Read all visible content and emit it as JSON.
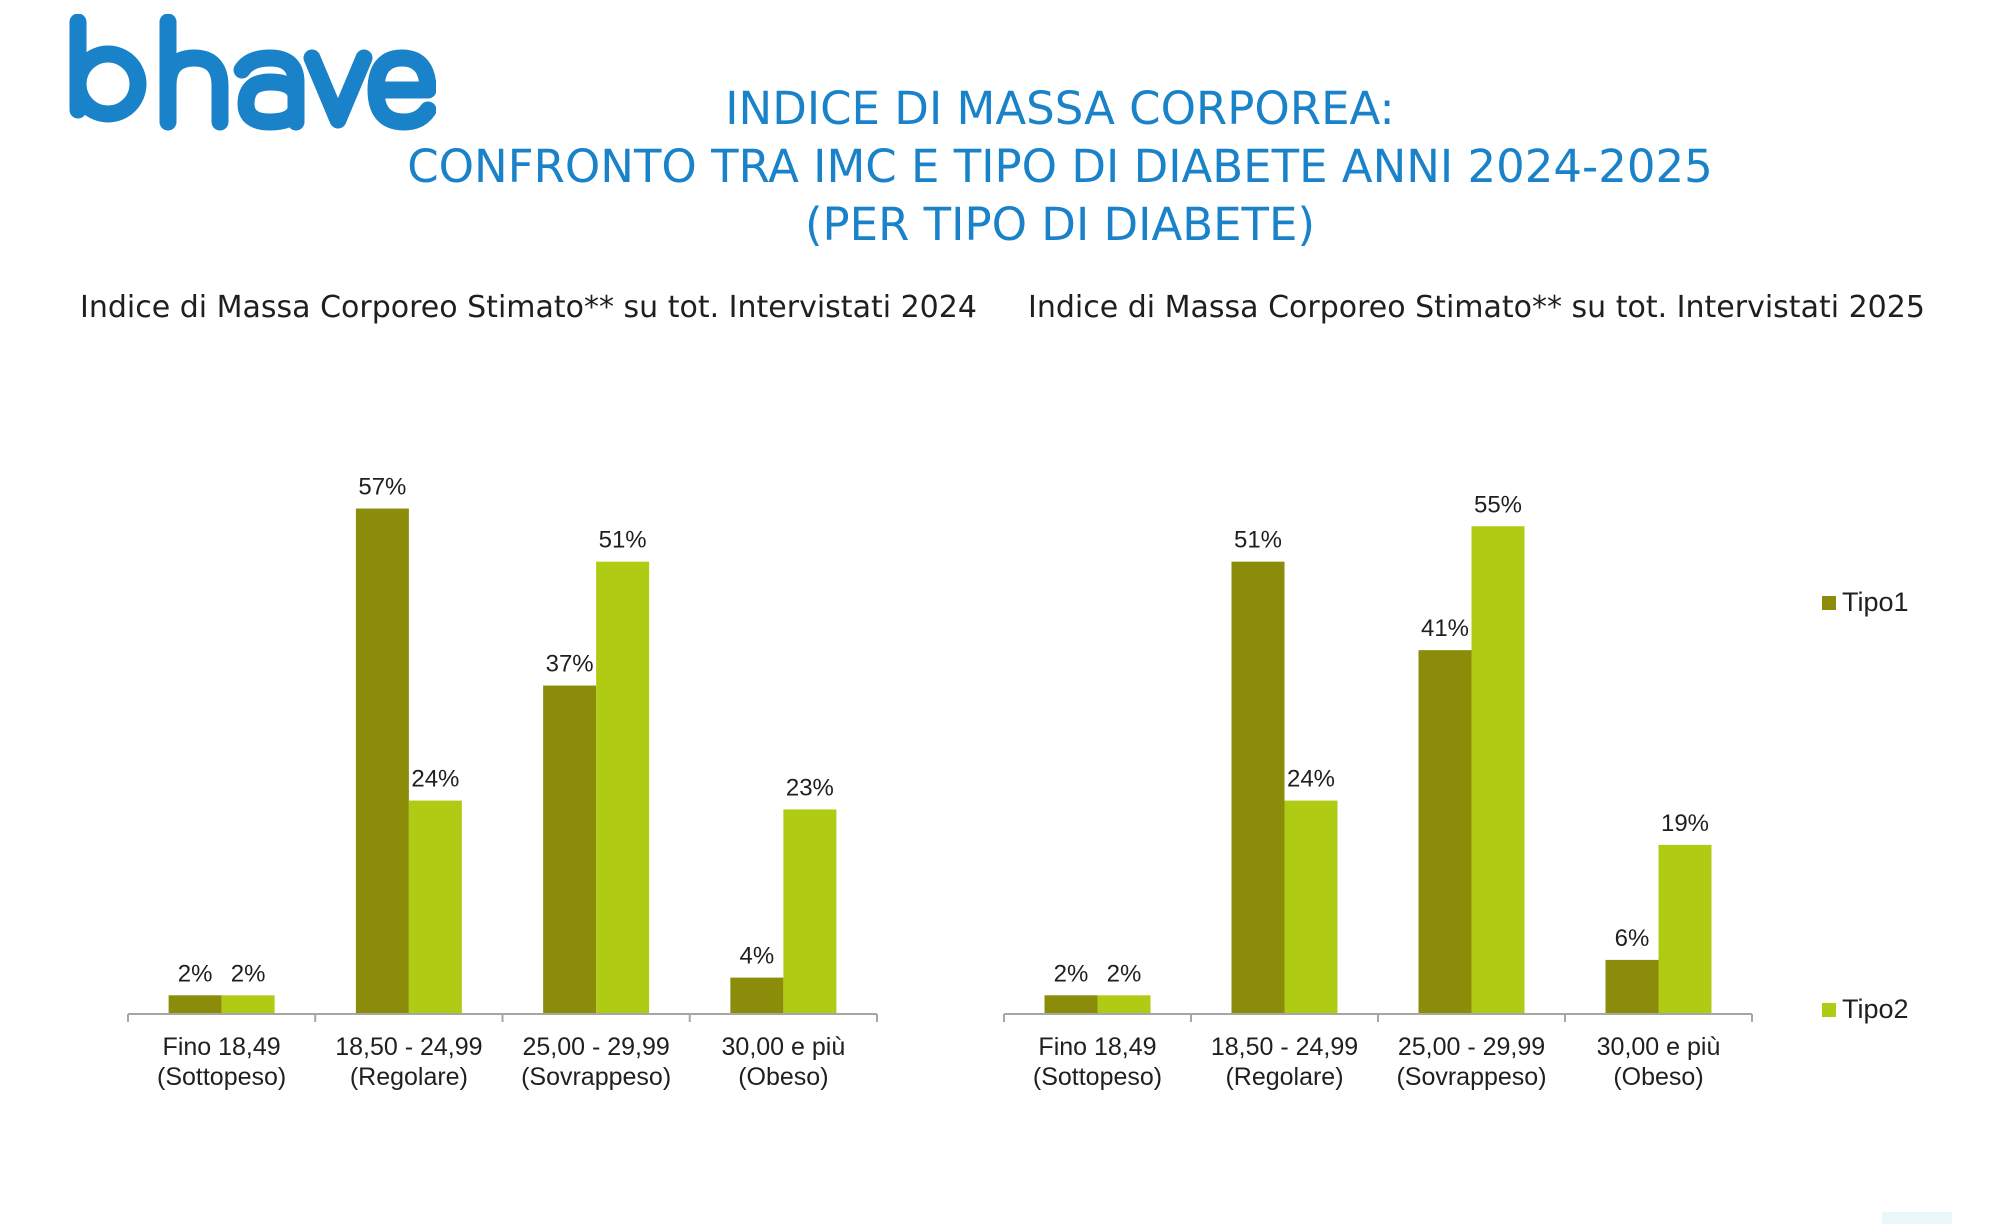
{
  "logo": {
    "text": "bhave",
    "color": "#1a82c8"
  },
  "title": {
    "line1": "INDICE DI MASSA CORPOREA:",
    "line2": "CONFRONTO TRA IMC E TIPO DI DIABETE ANNI 2024-2025",
    "line3": "(PER TIPO DI DIABETE)"
  },
  "legend": {
    "tipo1": {
      "label": "Tipo1",
      "color": "#8a8c0a"
    },
    "tipo2": {
      "label": "Tipo2",
      "color": "#b0cb13"
    }
  },
  "chart_data": [
    {
      "type": "bar",
      "title": "Indice di Massa Corporeo Stimato** su tot. Intervistati 2024",
      "categories": [
        [
          "Fino 18,49",
          "(Sottopeso)"
        ],
        [
          "18,50 - 24,99",
          "(Regolare)"
        ],
        [
          "25,00 - 29,99",
          "(Sovrappeso)"
        ],
        [
          "30,00 e più",
          "(Obeso)"
        ]
      ],
      "series": [
        {
          "name": "Tipo1",
          "values": [
            2,
            57,
            37,
            4
          ],
          "labels": [
            "2%",
            "57%",
            "37%",
            "4%"
          ]
        },
        {
          "name": "Tipo2",
          "values": [
            2,
            24,
            51,
            23
          ],
          "labels": [
            "2%",
            "24%",
            "51%",
            "23%"
          ]
        }
      ],
      "xlabel": "",
      "ylabel": "",
      "ylim": [
        0,
        60
      ]
    },
    {
      "type": "bar",
      "title": "Indice di Massa Corporeo Stimato** su tot. Intervistati 2025",
      "categories": [
        [
          "Fino 18,49",
          "(Sottopeso)"
        ],
        [
          "18,50 - 24,99",
          "(Regolare)"
        ],
        [
          "25,00 - 29,99",
          "(Sovrappeso)"
        ],
        [
          "30,00 e più",
          "(Obeso)"
        ]
      ],
      "series": [
        {
          "name": "Tipo1",
          "values": [
            2,
            51,
            41,
            6
          ],
          "labels": [
            "2%",
            "51%",
            "41%",
            "6%"
          ]
        },
        {
          "name": "Tipo2",
          "values": [
            2,
            24,
            55,
            19
          ],
          "labels": [
            "2%",
            "24%",
            "55%",
            "19%"
          ]
        }
      ],
      "xlabel": "",
      "ylabel": "",
      "ylim": [
        0,
        60
      ]
    }
  ]
}
